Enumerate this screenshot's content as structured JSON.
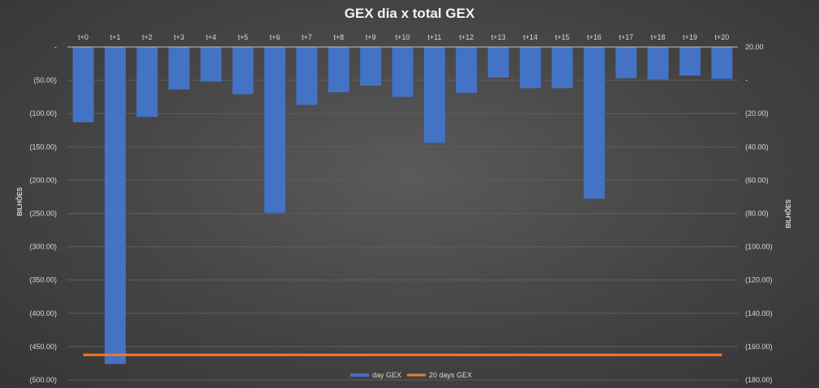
{
  "chart_data": {
    "type": "bar",
    "title": "GEX dia x total GEX",
    "categories": [
      "t+0",
      "t+1",
      "t+2",
      "t+3",
      "t+4",
      "t+5",
      "t+6",
      "t+7",
      "t+8",
      "t+9",
      "t+10",
      "t+11",
      "t+12",
      "t+13",
      "t+14",
      "t+15",
      "t+16",
      "t+17",
      "t+18",
      "t+19",
      "t+20"
    ],
    "series": [
      {
        "name": "day GEX",
        "type": "bar",
        "axis": "left",
        "color": "#4472c4",
        "values": [
          -113,
          -476,
          -105,
          -64,
          -52,
          -71,
          -249,
          -87,
          -68,
          -58,
          -75,
          -144,
          -69,
          -46,
          -62,
          -62,
          -228,
          -47,
          -49,
          -43,
          -48
        ]
      },
      {
        "name": "20 days GEX",
        "type": "line",
        "axis": "right",
        "color": "#ed7d31",
        "values": [
          -165,
          -165,
          -165,
          -165,
          -165,
          -165,
          -165,
          -165,
          -165,
          -165,
          -165,
          -165,
          -165,
          -165,
          -165,
          -165,
          -165,
          -165,
          -165,
          -165,
          -165
        ]
      }
    ],
    "left_axis": {
      "label": "BILHÕES",
      "ylim": [
        -500,
        0
      ],
      "ticks": [
        0,
        -50,
        -100,
        -150,
        -200,
        -250,
        -300,
        -350,
        -400,
        -450,
        -500
      ],
      "tick_labels": [
        "-",
        "(50.00)",
        "(100.00)",
        "(150.00)",
        "(200.00)",
        "(250.00)",
        "(300.00)",
        "(350.00)",
        "(400.00)",
        "(450.00)",
        "(500.00)"
      ]
    },
    "right_axis": {
      "label": "BILHÕES",
      "ylim": [
        -180,
        20
      ],
      "ticks": [
        20,
        0,
        -20,
        -40,
        -60,
        -80,
        -100,
        -120,
        -140,
        -160,
        -180
      ],
      "tick_labels": [
        "20.00",
        "-",
        "(20.00)",
        "(40.00)",
        "(60.00)",
        "(80.00)",
        "(100.00)",
        "(120.00)",
        "(140.00)",
        "(160.00)",
        "(180.00)"
      ]
    },
    "grid": true,
    "legend_position": "bottom"
  }
}
